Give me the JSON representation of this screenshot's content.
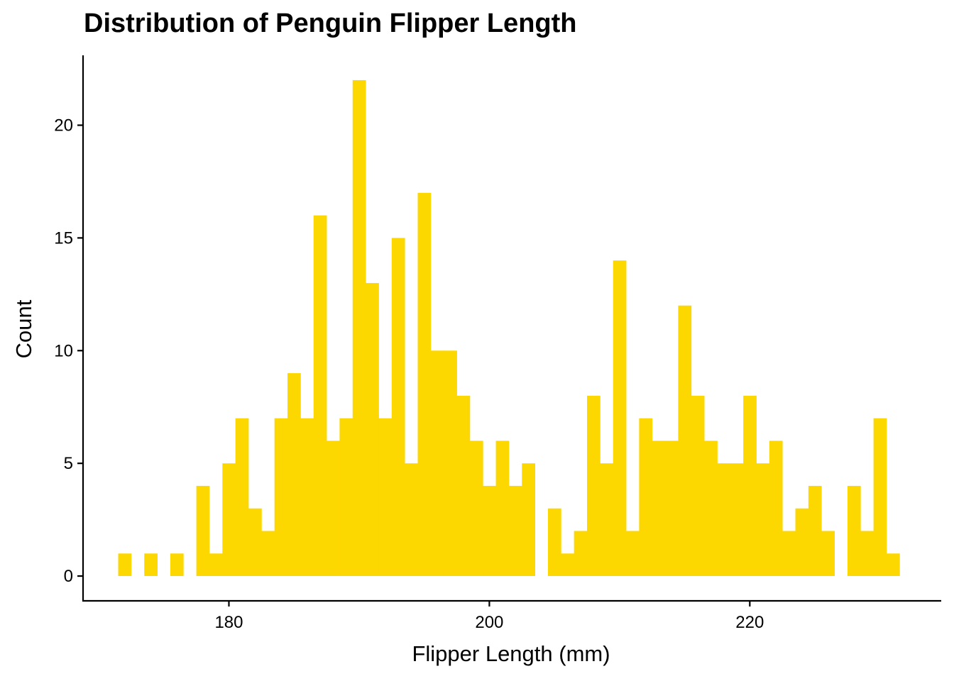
{
  "chart_data": {
    "type": "bar",
    "title": "Distribution of Penguin Flipper Length",
    "xlabel": "Flipper Length (mm)",
    "ylabel": "Count",
    "bin_width": 1,
    "bins": [
      {
        "x": 172,
        "count": 1
      },
      {
        "x": 174,
        "count": 1
      },
      {
        "x": 176,
        "count": 1
      },
      {
        "x": 178,
        "count": 4
      },
      {
        "x": 179,
        "count": 1
      },
      {
        "x": 180,
        "count": 5
      },
      {
        "x": 181,
        "count": 7
      },
      {
        "x": 182,
        "count": 3
      },
      {
        "x": 183,
        "count": 2
      },
      {
        "x": 184,
        "count": 7
      },
      {
        "x": 185,
        "count": 9
      },
      {
        "x": 186,
        "count": 7
      },
      {
        "x": 187,
        "count": 16
      },
      {
        "x": 188,
        "count": 6
      },
      {
        "x": 189,
        "count": 7
      },
      {
        "x": 190,
        "count": 22
      },
      {
        "x": 191,
        "count": 13
      },
      {
        "x": 192,
        "count": 7
      },
      {
        "x": 193,
        "count": 15
      },
      {
        "x": 194,
        "count": 5
      },
      {
        "x": 195,
        "count": 17
      },
      {
        "x": 196,
        "count": 10
      },
      {
        "x": 197,
        "count": 10
      },
      {
        "x": 198,
        "count": 8
      },
      {
        "x": 199,
        "count": 6
      },
      {
        "x": 200,
        "count": 4
      },
      {
        "x": 201,
        "count": 6
      },
      {
        "x": 202,
        "count": 4
      },
      {
        "x": 203,
        "count": 5
      },
      {
        "x": 205,
        "count": 3
      },
      {
        "x": 206,
        "count": 1
      },
      {
        "x": 207,
        "count": 2
      },
      {
        "x": 208,
        "count": 8
      },
      {
        "x": 209,
        "count": 5
      },
      {
        "x": 210,
        "count": 14
      },
      {
        "x": 211,
        "count": 2
      },
      {
        "x": 212,
        "count": 7
      },
      {
        "x": 213,
        "count": 6
      },
      {
        "x": 214,
        "count": 6
      },
      {
        "x": 215,
        "count": 12
      },
      {
        "x": 216,
        "count": 8
      },
      {
        "x": 217,
        "count": 6
      },
      {
        "x": 218,
        "count": 5
      },
      {
        "x": 219,
        "count": 5
      },
      {
        "x": 220,
        "count": 8
      },
      {
        "x": 221,
        "count": 5
      },
      {
        "x": 222,
        "count": 6
      },
      {
        "x": 223,
        "count": 2
      },
      {
        "x": 224,
        "count": 3
      },
      {
        "x": 225,
        "count": 4
      },
      {
        "x": 226,
        "count": 2
      },
      {
        "x": 228,
        "count": 4
      },
      {
        "x": 229,
        "count": 2
      },
      {
        "x": 230,
        "count": 7
      },
      {
        "x": 231,
        "count": 1
      }
    ],
    "xlim": [
      168.8,
      234.7
    ],
    "ylim": [
      -1.1,
      23.1
    ],
    "x_ticks": [
      180,
      200,
      220
    ],
    "y_ticks": [
      0,
      5,
      10,
      15,
      20
    ],
    "bar_color": "#FDD700",
    "grid": false,
    "legend": "none"
  }
}
